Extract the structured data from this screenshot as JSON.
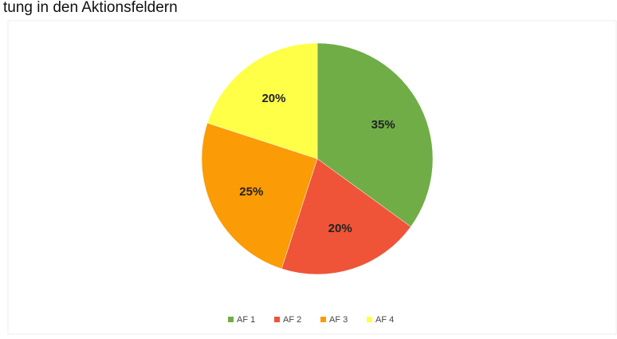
{
  "chart_data": {
    "type": "pie",
    "title": "tung in den Aktionsfeldern",
    "categories": [
      "AF 1",
      "AF 2",
      "AF 3",
      "AF 4"
    ],
    "values": [
      35,
      20,
      25,
      20
    ],
    "value_labels": [
      "35%",
      "20%",
      "25%",
      "20%"
    ],
    "colors": [
      "#70ad47",
      "#ef5438",
      "#fb9b06",
      "#ffff47"
    ],
    "legend": "bottom"
  }
}
